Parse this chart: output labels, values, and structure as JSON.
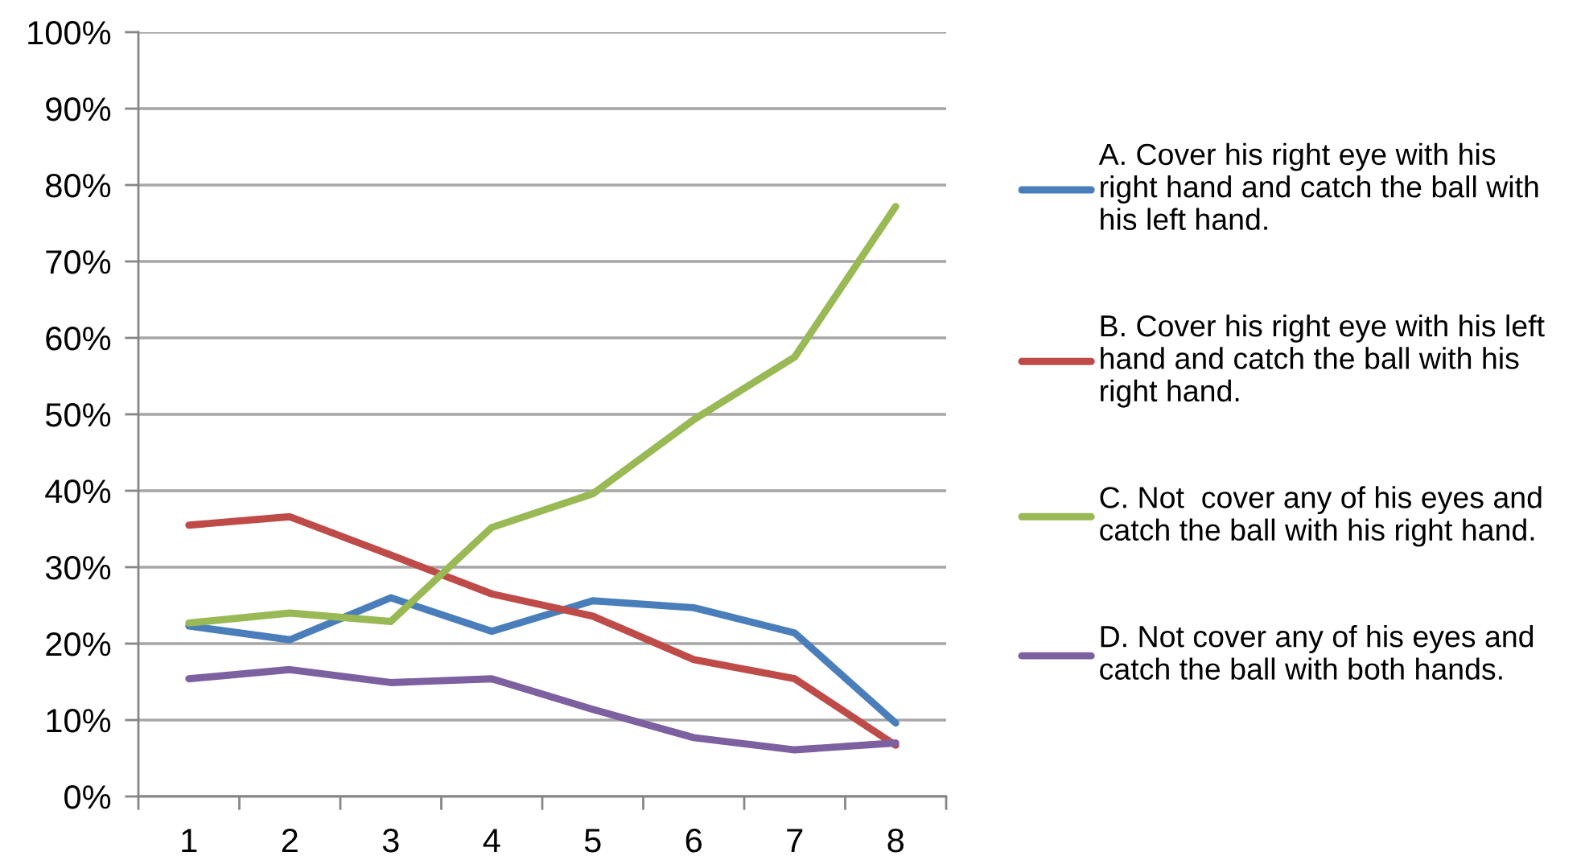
{
  "chart_data": {
    "type": "line",
    "categories": [
      "1",
      "2",
      "3",
      "4",
      "5",
      "6",
      "7",
      "8"
    ],
    "series": [
      {
        "name": "A. Cover his right eye with his right hand and catch the ball with his left hand.",
        "color": "#4a7ebb",
        "values": [
          22.3,
          20.5,
          26.0,
          21.6,
          25.6,
          24.7,
          21.4,
          9.6
        ]
      },
      {
        "name": "B. Cover his right eye with his left hand and catch the ball with his right hand.",
        "color": "#be4b48",
        "values": [
          35.5,
          36.6,
          31.6,
          26.5,
          23.6,
          17.9,
          15.4,
          6.7
        ]
      },
      {
        "name": "C. Not  cover any of his eyes and catch the ball with his right hand.",
        "color": "#98b954",
        "values": [
          22.7,
          24.0,
          22.9,
          35.2,
          39.6,
          49.3,
          57.5,
          77.2
        ]
      },
      {
        "name": "D. Not cover any of his eyes and catch the ball with both hands.",
        "color": "#7d60a0",
        "values": [
          15.4,
          16.6,
          14.9,
          15.4,
          11.4,
          7.7,
          6.1,
          7.0
        ]
      }
    ],
    "ylim": [
      0,
      100
    ],
    "yticks": [
      {
        "value": 0,
        "label": "0%"
      },
      {
        "value": 10,
        "label": "10%"
      },
      {
        "value": 20,
        "label": "20%"
      },
      {
        "value": 30,
        "label": "30%"
      },
      {
        "value": 40,
        "label": "40%"
      },
      {
        "value": 50,
        "label": "50%"
      },
      {
        "value": 60,
        "label": "60%"
      },
      {
        "value": 70,
        "label": "70%"
      },
      {
        "value": 80,
        "label": "80%"
      },
      {
        "value": 90,
        "label": "90%"
      },
      {
        "value": 100,
        "label": "100%"
      }
    ],
    "grid": "y",
    "legend": "right",
    "marker": "none",
    "line_style": "solid"
  }
}
